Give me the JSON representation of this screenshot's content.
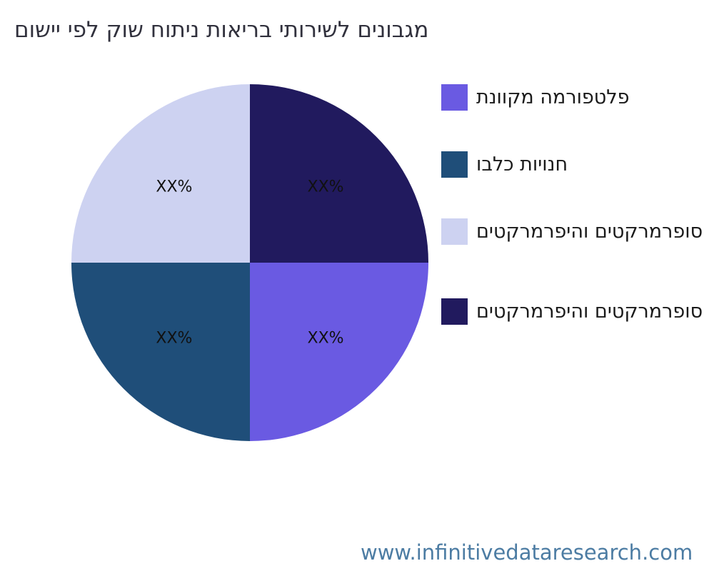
{
  "footer": {
    "url": "www.infinitivedataresearch.com",
    "color": "#4c7ca3"
  },
  "chart_data": {
    "type": "pie",
    "title": "מגבונים לשירותי בריאות ניתוח שוק לפי יישום",
    "legend_position": "right",
    "value_placeholder": "XX%",
    "segments": [
      {
        "label": "פלטפורמה מקוונת",
        "value": 25,
        "value_label": "XX%",
        "color": "#6a5ae2",
        "quarter": "bottom-right"
      },
      {
        "label": "חנויות כלבו",
        "value": 25,
        "value_label": "XX%",
        "color": "#1f4e79",
        "quarter": "bottom-left"
      },
      {
        "label": "סופרמרקטים והיפרמרקטים",
        "value": 25,
        "value_label": "XX%",
        "color": "#cdd2f1",
        "quarter": "top-left"
      },
      {
        "label": "סופרמרקטים והיפרמרקטים",
        "value": 25,
        "value_label": "XX%",
        "color": "#211a5e",
        "quarter": "top-right"
      }
    ],
    "pie_order_clockwise_from_top": [
      3,
      0,
      1,
      2
    ]
  }
}
